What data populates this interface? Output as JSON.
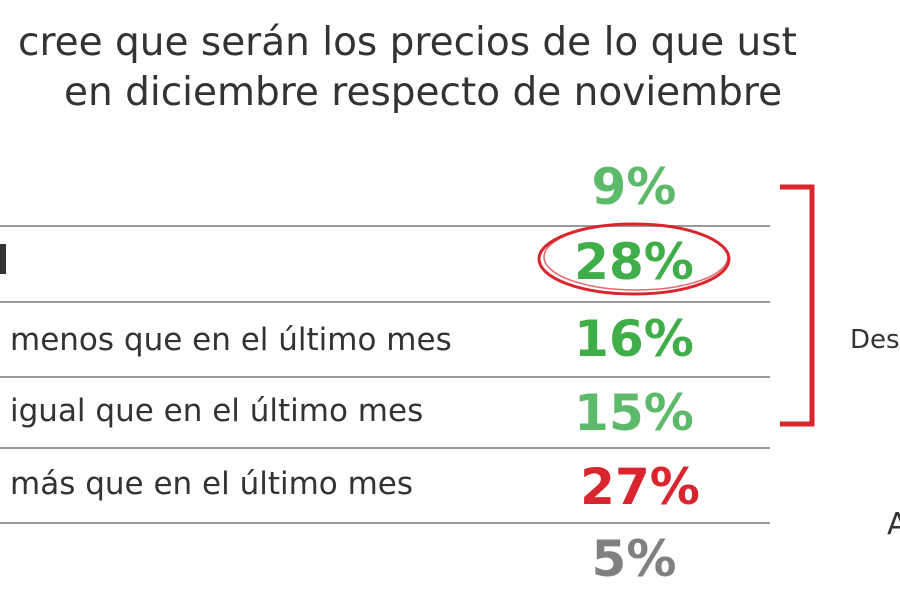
{
  "title": {
    "line1": "cree que serán los precios de lo que ust",
    "line2": "en diciembre respecto de noviembre"
  },
  "chart_data": {
    "type": "table",
    "rows": [
      {
        "label": "",
        "value": 9,
        "display": "9%",
        "color": "#5cba6a"
      },
      {
        "label": "",
        "value": 28,
        "display": "28%",
        "color": "#3fae49",
        "circled": true
      },
      {
        "label": "menos que en el último mes",
        "value": 16,
        "display": "16%",
        "color": "#3fae49"
      },
      {
        "label": "igual que en el último mes",
        "value": 15,
        "display": "15%",
        "color": "#5cba6a"
      },
      {
        "label": "más que en el último mes",
        "value": 27,
        "display": "27%",
        "color": "#d9262e"
      },
      {
        "label": "",
        "value": 5,
        "display": "5%",
        "color": "#808080"
      }
    ],
    "bracket_label": "Des",
    "side_label_2": "A"
  },
  "colors": {
    "green": "#3fae49",
    "light_green": "#5cba6a",
    "red": "#d9262e",
    "gray": "#808080",
    "separator": "#9a9a9a"
  }
}
